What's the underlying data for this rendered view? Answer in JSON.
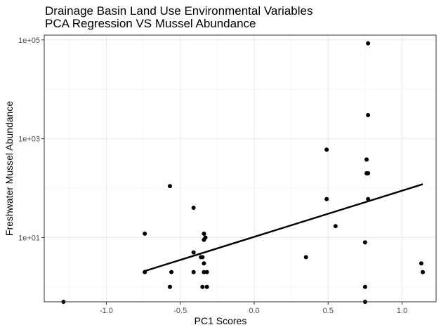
{
  "chart_data": {
    "type": "scatter",
    "title": "Drainage Basin Land Use Environmental Variables",
    "subtitle": "PCA Regression VS Mussel Abundance",
    "xlabel": "PC1 Scores",
    "ylabel": "Freshwater Mussel Abundance",
    "y_scale": "log10",
    "xlim": [
      -1.42,
      1.23
    ],
    "ylim": [
      0.5,
      125000
    ],
    "x_ticks": [
      -1.0,
      -0.5,
      0.0,
      0.5,
      1.0
    ],
    "x_tick_labels": [
      "-1.0",
      "-0.5",
      "0.0",
      "0.5",
      "1.0"
    ],
    "y_ticks": [
      10,
      1000,
      100000
    ],
    "y_tick_labels": [
      "1e+01",
      "1e+03",
      "1e+05"
    ],
    "grid": true,
    "points": [
      {
        "x": -1.29,
        "y": 0.5
      },
      {
        "x": -0.74,
        "y": 12
      },
      {
        "x": -0.74,
        "y": 2
      },
      {
        "x": -0.57,
        "y": 110
      },
      {
        "x": -0.57,
        "y": 1
      },
      {
        "x": -0.56,
        "y": 2
      },
      {
        "x": -0.41,
        "y": 40
      },
      {
        "x": -0.41,
        "y": 5
      },
      {
        "x": -0.41,
        "y": 2
      },
      {
        "x": -0.36,
        "y": 4
      },
      {
        "x": -0.35,
        "y": 4
      },
      {
        "x": -0.35,
        "y": 1
      },
      {
        "x": -0.34,
        "y": 12
      },
      {
        "x": -0.34,
        "y": 9
      },
      {
        "x": -0.34,
        "y": 3
      },
      {
        "x": -0.34,
        "y": 2
      },
      {
        "x": -0.33,
        "y": 10
      },
      {
        "x": -0.32,
        "y": 2
      },
      {
        "x": -0.32,
        "y": 1
      },
      {
        "x": 0.35,
        "y": 4
      },
      {
        "x": 0.49,
        "y": 600
      },
      {
        "x": 0.49,
        "y": 60
      },
      {
        "x": 0.55,
        "y": 17
      },
      {
        "x": 0.75,
        "y": 8
      },
      {
        "x": 0.75,
        "y": 1
      },
      {
        "x": 0.75,
        "y": 0.5
      },
      {
        "x": 0.76,
        "y": 380
      },
      {
        "x": 0.76,
        "y": 200
      },
      {
        "x": 0.77,
        "y": 200
      },
      {
        "x": 0.77,
        "y": 3000
      },
      {
        "x": 0.77,
        "y": 60
      },
      {
        "x": 0.77,
        "y": 85000
      },
      {
        "x": 1.13,
        "y": 3
      },
      {
        "x": 1.14,
        "y": 2
      }
    ],
    "regression_line": {
      "x": [
        -0.74,
        1.14
      ],
      "y": [
        2.1,
        120
      ]
    }
  },
  "colors": {
    "panel_background": "#ffffff",
    "grid_major": "#ebebeb",
    "grid_minor": "#f5f5f5",
    "panel_border": "#333333",
    "points": "#000000",
    "regression_line": "#000000",
    "tick_text": "#4d4d4d"
  }
}
